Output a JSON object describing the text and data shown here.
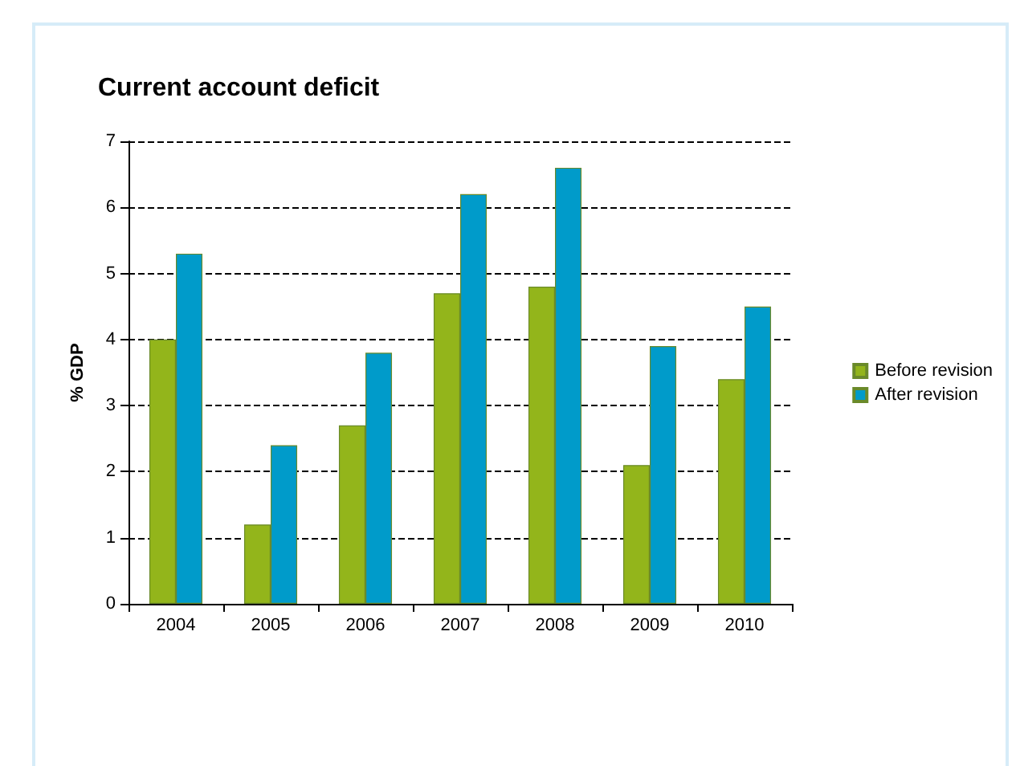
{
  "chart_data": {
    "type": "bar",
    "title": "Current account deficit",
    "ylabel": "% GDP",
    "categories": [
      "2004",
      "2005",
      "2006",
      "2007",
      "2008",
      "2009",
      "2010"
    ],
    "series": [
      {
        "name": "Before revision",
        "color": "#93b51b",
        "values": [
          4.0,
          1.2,
          2.7,
          4.7,
          4.8,
          2.1,
          3.4
        ]
      },
      {
        "name": "After revision",
        "color": "#009bca",
        "values": [
          5.3,
          2.4,
          3.8,
          6.2,
          6.6,
          3.9,
          4.5
        ]
      }
    ],
    "ylim": [
      0,
      7
    ],
    "yticks": [
      0,
      1,
      2,
      3,
      4,
      5,
      6,
      7
    ],
    "grid": "y",
    "line_style": "dashed",
    "legend": "right"
  }
}
